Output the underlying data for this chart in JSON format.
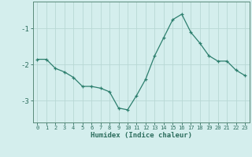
{
  "x": [
    0,
    1,
    2,
    3,
    4,
    5,
    6,
    7,
    8,
    9,
    10,
    11,
    12,
    13,
    14,
    15,
    16,
    17,
    18,
    19,
    20,
    21,
    22,
    23
  ],
  "y": [
    -1.85,
    -1.85,
    -2.1,
    -2.2,
    -2.35,
    -2.6,
    -2.6,
    -2.65,
    -2.75,
    -3.2,
    -3.25,
    -2.85,
    -2.4,
    -1.75,
    -1.25,
    -0.75,
    -0.6,
    -1.1,
    -1.4,
    -1.75,
    -1.9,
    -1.9,
    -2.15,
    -2.3
  ],
  "line_color": "#2d7f6e",
  "marker": "+",
  "marker_size": 3,
  "bg_color": "#d4eeed",
  "grid_color": "#b8d8d4",
  "tick_color": "#2d6e5e",
  "axis_color": "#5a8a7a",
  "xlabel": "Humidex (Indice chaleur)",
  "yticks": [
    -3,
    -2,
    -1
  ],
  "ylim": [
    -3.6,
    -0.25
  ],
  "xlim": [
    -0.5,
    23.5
  ],
  "font_color": "#2d6e5e",
  "xtick_fontsize": 5.0,
  "ytick_fontsize": 6.5,
  "xlabel_fontsize": 6.5
}
